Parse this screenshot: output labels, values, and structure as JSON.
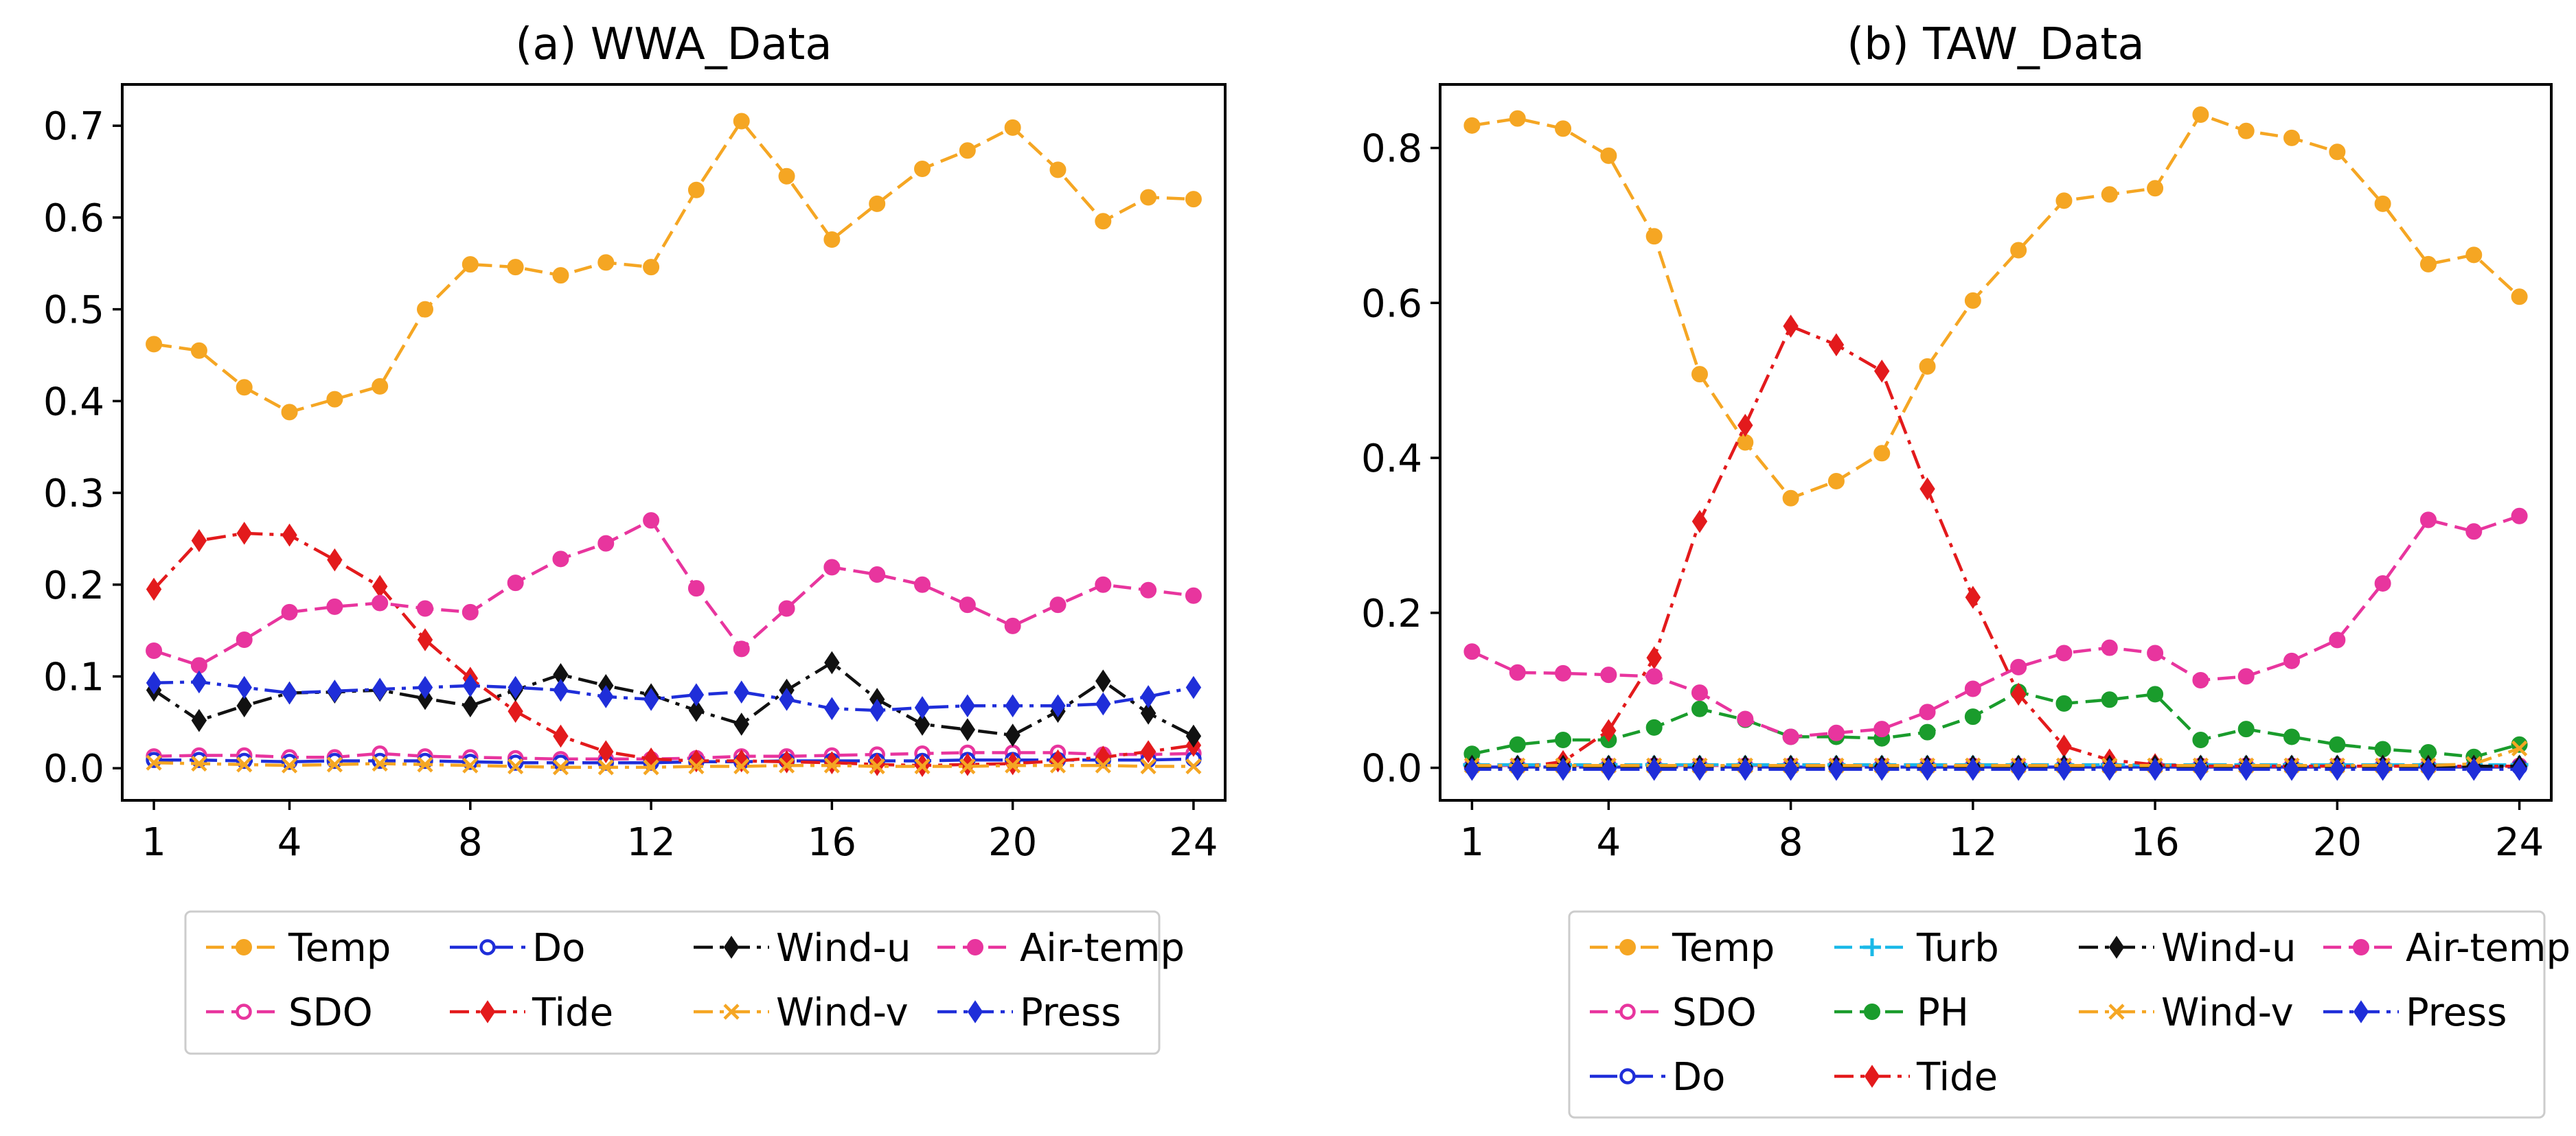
{
  "chart_data": [
    {
      "type": "line",
      "title": "(a) WWA_Data",
      "xlabel": "",
      "ylabel": "",
      "xlim": [
        0.3,
        24.7
      ],
      "ylim": [
        -0.035,
        0.745
      ],
      "xticks": [
        1,
        4,
        8,
        12,
        16,
        20,
        24
      ],
      "yticks": [
        0.0,
        0.1,
        0.2,
        0.3,
        0.4,
        0.5,
        0.6,
        0.7
      ],
      "ytick_labels": [
        "0.0",
        "0.1",
        "0.2",
        "0.3",
        "0.4",
        "0.5",
        "0.6",
        "0.7"
      ],
      "x": [
        1,
        2,
        3,
        4,
        5,
        6,
        7,
        8,
        9,
        10,
        11,
        12,
        13,
        14,
        15,
        16,
        17,
        18,
        19,
        20,
        21,
        22,
        23,
        24
      ],
      "legend": {
        "columns": 4,
        "placement": "below"
      },
      "series": [
        {
          "name": "Temp",
          "color": "#f5a623",
          "dash": "dashed",
          "marker": "circle",
          "values": [
            0.462,
            0.455,
            0.415,
            0.388,
            0.402,
            0.416,
            0.5,
            0.549,
            0.546,
            0.537,
            0.551,
            0.546,
            0.63,
            0.705,
            0.645,
            0.576,
            0.615,
            0.653,
            0.673,
            0.698,
            0.652,
            0.596,
            0.622,
            0.62
          ]
        },
        {
          "name": "SDO",
          "color": "#e8359e",
          "dash": "dashed",
          "marker": "circle-open",
          "values": [
            0.013,
            0.014,
            0.014,
            0.012,
            0.012,
            0.016,
            0.013,
            0.012,
            0.011,
            0.01,
            0.01,
            0.01,
            0.011,
            0.013,
            0.013,
            0.014,
            0.015,
            0.016,
            0.017,
            0.017,
            0.017,
            0.015,
            0.015,
            0.016
          ]
        },
        {
          "name": "Do",
          "color": "#1f2ed9",
          "dash": "longdash",
          "marker": "circle-open",
          "values": [
            0.009,
            0.009,
            0.008,
            0.007,
            0.008,
            0.008,
            0.008,
            0.007,
            0.006,
            0.006,
            0.006,
            0.006,
            0.007,
            0.007,
            0.008,
            0.008,
            0.008,
            0.008,
            0.009,
            0.009,
            0.009,
            0.009,
            0.009,
            0.01
          ]
        },
        {
          "name": "Tide",
          "color": "#e31a1c",
          "dash": "dashdot",
          "marker": "diamond",
          "values": [
            0.195,
            0.248,
            0.256,
            0.254,
            0.227,
            0.198,
            0.14,
            0.098,
            0.062,
            0.035,
            0.018,
            0.01,
            0.008,
            0.008,
            0.007,
            0.006,
            0.004,
            0.003,
            0.004,
            0.005,
            0.008,
            0.012,
            0.018,
            0.025
          ]
        },
        {
          "name": "Wind-u",
          "color": "#111111",
          "dash": "dashdot",
          "marker": "diamond",
          "values": [
            0.085,
            0.052,
            0.068,
            0.082,
            0.083,
            0.085,
            0.076,
            0.068,
            0.085,
            0.102,
            0.09,
            0.08,
            0.063,
            0.048,
            0.085,
            0.115,
            0.075,
            0.048,
            0.042,
            0.036,
            0.062,
            0.095,
            0.06,
            0.035
          ]
        },
        {
          "name": "Wind-v",
          "color": "#f5a623",
          "dash": "dashdot",
          "marker": "x",
          "values": [
            0.006,
            0.005,
            0.004,
            0.003,
            0.004,
            0.005,
            0.004,
            0.003,
            0.002,
            0.001,
            0.001,
            0.001,
            0.002,
            0.002,
            0.003,
            0.003,
            0.002,
            0.002,
            0.002,
            0.003,
            0.003,
            0.003,
            0.002,
            0.002
          ]
        },
        {
          "name": "Air-temp",
          "color": "#e8359e",
          "dash": "dashed",
          "marker": "circle",
          "values": [
            0.128,
            0.112,
            0.14,
            0.17,
            0.176,
            0.18,
            0.174,
            0.17,
            0.202,
            0.228,
            0.245,
            0.27,
            0.196,
            0.13,
            0.174,
            0.219,
            0.211,
            0.2,
            0.178,
            0.155,
            0.178,
            0.2,
            0.194,
            0.188
          ]
        },
        {
          "name": "Press",
          "color": "#1f2ed9",
          "dash": "dashdot",
          "marker": "diamond",
          "values": [
            0.093,
            0.094,
            0.088,
            0.082,
            0.084,
            0.086,
            0.088,
            0.09,
            0.088,
            0.085,
            0.078,
            0.075,
            0.08,
            0.083,
            0.075,
            0.065,
            0.063,
            0.066,
            0.068,
            0.068,
            0.068,
            0.07,
            0.078,
            0.088
          ]
        }
      ]
    },
    {
      "type": "line",
      "title": "(b) TAW_Data",
      "xlabel": "",
      "ylabel": "",
      "xlim": [
        0.3,
        24.7
      ],
      "ylim": [
        -0.042,
        0.882
      ],
      "xticks": [
        1,
        4,
        8,
        12,
        16,
        20,
        24
      ],
      "yticks": [
        0.0,
        0.2,
        0.4,
        0.6,
        0.8
      ],
      "ytick_labels": [
        "0.0",
        "0.2",
        "0.4",
        "0.6",
        "0.8"
      ],
      "x": [
        1,
        2,
        3,
        4,
        5,
        6,
        7,
        8,
        9,
        10,
        11,
        12,
        13,
        14,
        15,
        16,
        17,
        18,
        19,
        20,
        21,
        22,
        23,
        24
      ],
      "legend": {
        "columns": 4,
        "placement": "below"
      },
      "series": [
        {
          "name": "Temp",
          "color": "#f5a623",
          "dash": "dashed",
          "marker": "circle",
          "values": [
            0.829,
            0.838,
            0.825,
            0.79,
            0.686,
            0.508,
            0.42,
            0.348,
            0.37,
            0.406,
            0.518,
            0.603,
            0.668,
            0.732,
            0.74,
            0.748,
            0.843,
            0.822,
            0.813,
            0.795,
            0.728,
            0.65,
            0.662,
            0.608
          ]
        },
        {
          "name": "SDO",
          "color": "#e8359e",
          "dash": "dashed",
          "marker": "circle-open",
          "values": [
            0.003,
            0.003,
            0.003,
            0.003,
            0.003,
            0.003,
            0.003,
            0.003,
            0.003,
            0.003,
            0.003,
            0.003,
            0.003,
            0.003,
            0.003,
            0.003,
            0.003,
            0.003,
            0.003,
            0.003,
            0.003,
            0.003,
            0.003,
            0.003
          ]
        },
        {
          "name": "Do",
          "color": "#1f2ed9",
          "dash": "longdash",
          "marker": "circle-open",
          "values": [
            0.001,
            0.001,
            0.001,
            0.001,
            0.001,
            0.001,
            0.001,
            0.001,
            0.001,
            0.001,
            0.001,
            0.001,
            0.001,
            0.001,
            0.001,
            0.001,
            0.001,
            0.001,
            0.001,
            0.001,
            0.001,
            0.001,
            0.001,
            0.001
          ]
        },
        {
          "name": "Turb",
          "color": "#1ab9e8",
          "dash": "dashed",
          "marker": "plus",
          "values": [
            0.004,
            0.004,
            0.004,
            0.004,
            0.004,
            0.004,
            0.004,
            0.004,
            0.004,
            0.004,
            0.004,
            0.004,
            0.004,
            0.004,
            0.004,
            0.004,
            0.004,
            0.004,
            0.004,
            0.004,
            0.004,
            0.004,
            0.004,
            0.004
          ]
        },
        {
          "name": "PH",
          "color": "#1a9c2c",
          "dash": "dashed",
          "marker": "circle",
          "values": [
            0.018,
            0.03,
            0.036,
            0.036,
            0.052,
            0.076,
            0.062,
            0.04,
            0.04,
            0.038,
            0.046,
            0.066,
            0.098,
            0.083,
            0.088,
            0.095,
            0.036,
            0.05,
            0.04,
            0.03,
            0.024,
            0.02,
            0.014,
            0.03
          ]
        },
        {
          "name": "Tide",
          "color": "#e31a1c",
          "dash": "dashdot",
          "marker": "diamond",
          "values": [
            0.0,
            0.0,
            0.008,
            0.048,
            0.142,
            0.318,
            0.442,
            0.57,
            0.546,
            0.512,
            0.36,
            0.22,
            0.095,
            0.028,
            0.01,
            0.004,
            0.002,
            0.002,
            0.002,
            0.002,
            0.002,
            0.002,
            0.002,
            0.002
          ]
        },
        {
          "name": "Wind-u",
          "color": "#111111",
          "dash": "dashdot",
          "marker": "diamond",
          "values": [
            0.002,
            0.002,
            0.002,
            0.002,
            0.002,
            0.002,
            0.002,
            0.002,
            0.002,
            0.002,
            0.002,
            0.002,
            0.002,
            0.002,
            0.002,
            0.002,
            0.002,
            0.002,
            0.002,
            0.002,
            0.002,
            0.002,
            0.002,
            0.002
          ]
        },
        {
          "name": "Wind-v",
          "color": "#f5a623",
          "dash": "dashdot",
          "marker": "x",
          "values": [
            0.003,
            0.003,
            0.003,
            0.003,
            0.003,
            0.003,
            0.003,
            0.003,
            0.003,
            0.003,
            0.003,
            0.003,
            0.003,
            0.003,
            0.003,
            0.003,
            0.003,
            0.003,
            0.003,
            0.003,
            0.003,
            0.003,
            0.005,
            0.025
          ]
        },
        {
          "name": "Air-temp",
          "color": "#e8359e",
          "dash": "dashed",
          "marker": "circle",
          "values": [
            0.15,
            0.123,
            0.122,
            0.12,
            0.118,
            0.097,
            0.063,
            0.04,
            0.045,
            0.05,
            0.072,
            0.102,
            0.13,
            0.148,
            0.155,
            0.148,
            0.113,
            0.118,
            0.138,
            0.165,
            0.238,
            0.32,
            0.305,
            0.325
          ]
        },
        {
          "name": "Press",
          "color": "#1f2ed9",
          "dash": "dashdot",
          "marker": "diamond",
          "values": [
            -0.002,
            -0.002,
            -0.002,
            -0.002,
            -0.002,
            -0.002,
            -0.002,
            -0.002,
            -0.002,
            -0.002,
            -0.002,
            -0.002,
            -0.002,
            -0.002,
            -0.002,
            -0.002,
            -0.002,
            -0.002,
            -0.002,
            -0.002,
            -0.002,
            -0.002,
            -0.002,
            -0.002
          ]
        }
      ]
    }
  ]
}
